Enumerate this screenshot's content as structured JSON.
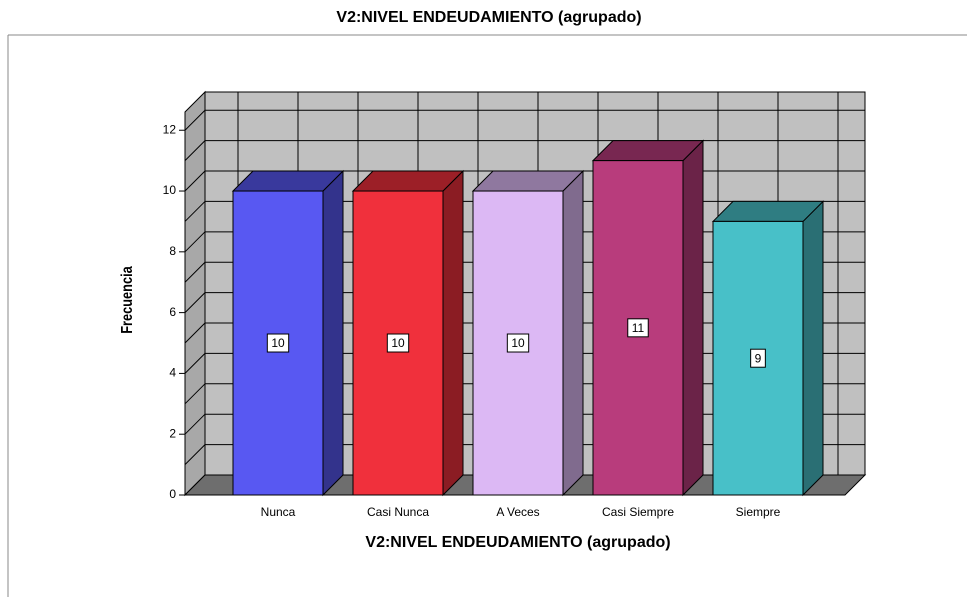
{
  "chart_data": {
    "type": "bar3d",
    "title": "V2:NIVEL ENDEUDAMIENTO (agrupado)",
    "x_label": "V2:NIVEL ENDEUDAMIENTO (agrupado)",
    "y_label": "Frecuencia",
    "categories": [
      "Nunca",
      "Casi Nunca",
      "A Veces",
      "Casi Siempre",
      "Siempre"
    ],
    "values": [
      10,
      10,
      10,
      11,
      9
    ],
    "colors": [
      "#5858f2",
      "#f0303c",
      "#dcb8f4",
      "#b83c7c",
      "#48c0c8"
    ],
    "ylim": [
      0,
      12.6
    ],
    "yticks": [
      0,
      2,
      4,
      6,
      8,
      10,
      12
    ],
    "minor_yticks": [
      1,
      3,
      5,
      7,
      9,
      11
    ],
    "grid": true,
    "data_labels": true
  }
}
